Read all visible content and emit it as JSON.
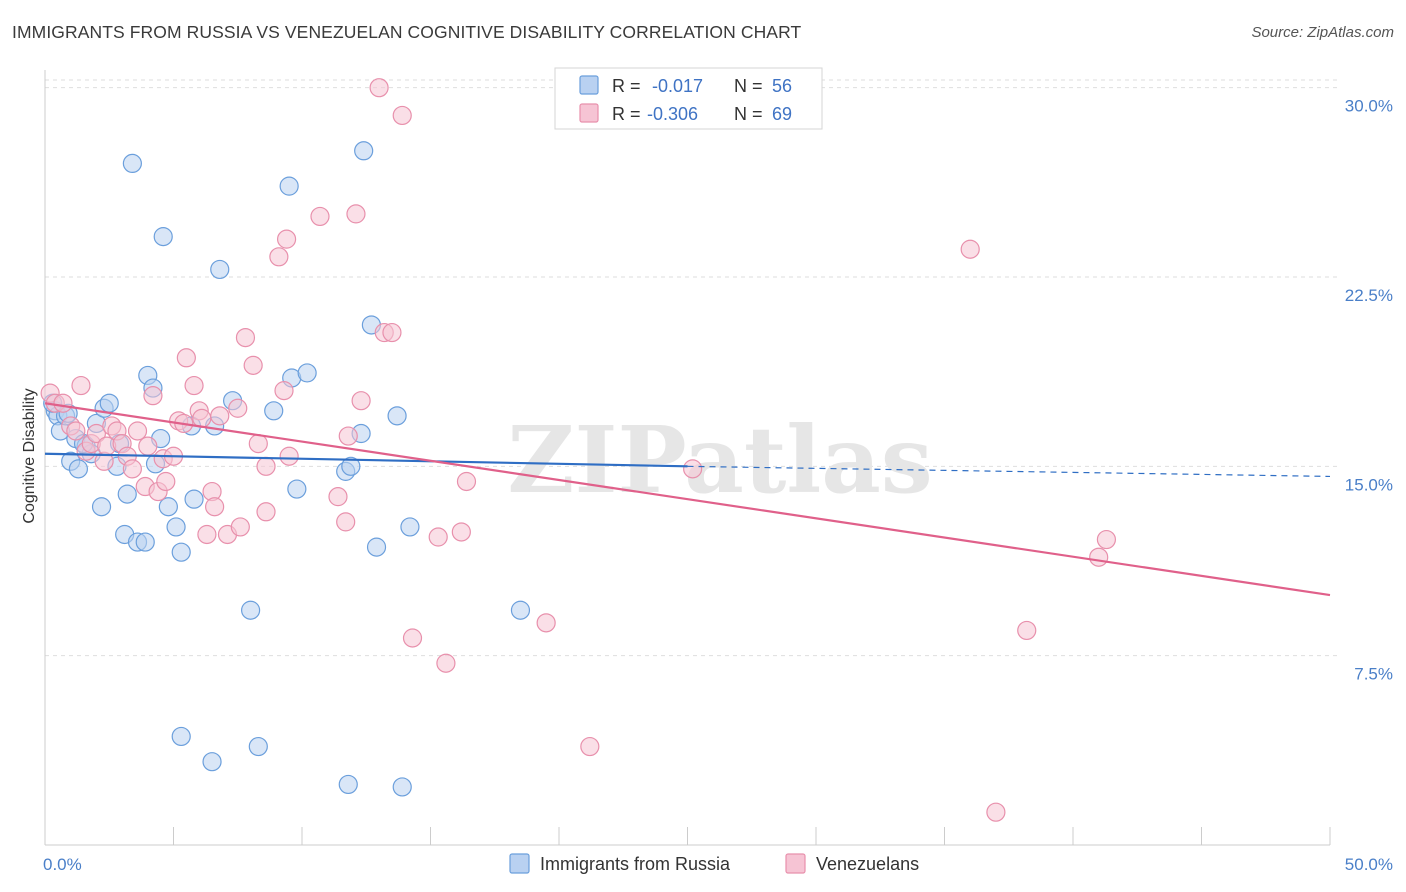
{
  "chart_data": {
    "type": "scatter",
    "title": "IMMIGRANTS FROM RUSSIA VS VENEZUELAN COGNITIVE DISABILITY CORRELATION CHART",
    "source": "Source: ZipAtlas.com",
    "xlabel": "",
    "ylabel": "Cognitive Disability",
    "xlim": [
      0,
      50
    ],
    "ylim": [
      0,
      30.7
    ],
    "y_ticks": [
      {
        "value": 7.5,
        "label": "7.5%"
      },
      {
        "value": 15.0,
        "label": "15.0%"
      },
      {
        "value": 22.5,
        "label": "22.5%"
      },
      {
        "value": 30.0,
        "label": "30.0%"
      }
    ],
    "x_tick_labels": {
      "left": "0.0%",
      "right": "50.0%"
    },
    "grid": true,
    "legend": {
      "placement": "top-center",
      "rows": [
        {
          "r_label": "R =",
          "r_value": "-0.017",
          "n_label": "N =",
          "n_value": "56"
        },
        {
          "r_label": "R =",
          "r_value": "-0.306",
          "n_label": "N =",
          "n_value": "69"
        }
      ]
    },
    "bottom_legend_placement": "bottom-center",
    "watermark": "ZIPatlas",
    "series": [
      {
        "name": "Immigrants from Russia",
        "color": "#6b9fdc",
        "fill": "#b9d1f1",
        "trend": {
          "x0": 0,
          "y0": 15.5,
          "x1": 25,
          "y1": 15.0,
          "dash_x1": 50,
          "dash_y1": 14.6,
          "color": "#2f6ec4"
        },
        "points": [
          [
            0.4,
            17.2
          ],
          [
            0.5,
            17.0
          ],
          [
            0.6,
            16.4
          ],
          [
            0.8,
            17.0
          ],
          [
            1.0,
            15.2
          ],
          [
            1.2,
            16.1
          ],
          [
            1.3,
            14.9
          ],
          [
            1.6,
            15.8
          ],
          [
            1.8,
            15.5
          ],
          [
            2.0,
            16.7
          ],
          [
            2.2,
            13.4
          ],
          [
            2.3,
            17.3
          ],
          [
            2.5,
            17.5
          ],
          [
            2.8,
            15.0
          ],
          [
            2.9,
            15.9
          ],
          [
            3.1,
            12.3
          ],
          [
            3.2,
            13.9
          ],
          [
            3.4,
            27.0
          ],
          [
            3.6,
            12.0
          ],
          [
            3.9,
            12.0
          ],
          [
            4.0,
            18.6
          ],
          [
            4.2,
            18.1
          ],
          [
            4.3,
            15.1
          ],
          [
            4.5,
            16.1
          ],
          [
            4.6,
            24.1
          ],
          [
            4.8,
            13.4
          ],
          [
            5.1,
            12.6
          ],
          [
            5.3,
            11.6
          ],
          [
            5.3,
            4.3
          ],
          [
            5.7,
            16.6
          ],
          [
            5.8,
            13.7
          ],
          [
            6.5,
            3.3
          ],
          [
            6.6,
            16.6
          ],
          [
            6.8,
            22.8
          ],
          [
            7.3,
            17.6
          ],
          [
            8.0,
            9.3
          ],
          [
            8.3,
            3.9
          ],
          [
            8.9,
            17.2
          ],
          [
            9.5,
            26.1
          ],
          [
            9.6,
            18.5
          ],
          [
            9.8,
            14.1
          ],
          [
            10.2,
            18.7
          ],
          [
            11.7,
            14.8
          ],
          [
            11.8,
            2.4
          ],
          [
            11.9,
            15.0
          ],
          [
            12.3,
            16.3
          ],
          [
            12.4,
            27.5
          ],
          [
            12.7,
            20.6
          ],
          [
            12.9,
            11.8
          ],
          [
            13.7,
            17.0
          ],
          [
            13.9,
            2.3
          ],
          [
            14.2,
            12.6
          ],
          [
            18.5,
            9.3
          ],
          [
            0.3,
            17.5
          ],
          [
            0.9,
            17.1
          ],
          [
            1.5,
            15.9
          ]
        ]
      },
      {
        "name": "Venezuelans",
        "color": "#e890ac",
        "fill": "#f6c4d4",
        "trend": {
          "x0": 0,
          "y0": 17.5,
          "x1": 50,
          "y1": 9.9,
          "color": "#e0608a"
        },
        "points": [
          [
            0.2,
            17.9
          ],
          [
            0.4,
            17.5
          ],
          [
            0.7,
            17.5
          ],
          [
            1.0,
            16.6
          ],
          [
            1.2,
            16.4
          ],
          [
            1.4,
            18.2
          ],
          [
            1.6,
            15.6
          ],
          [
            1.8,
            15.9
          ],
          [
            2.0,
            16.3
          ],
          [
            2.3,
            15.2
          ],
          [
            2.4,
            15.8
          ],
          [
            2.6,
            16.6
          ],
          [
            2.8,
            16.4
          ],
          [
            3.0,
            15.9
          ],
          [
            3.2,
            15.4
          ],
          [
            3.4,
            14.9
          ],
          [
            3.6,
            16.4
          ],
          [
            3.9,
            14.2
          ],
          [
            4.0,
            15.8
          ],
          [
            4.2,
            17.8
          ],
          [
            4.4,
            14.0
          ],
          [
            4.6,
            15.3
          ],
          [
            4.7,
            14.4
          ],
          [
            5.0,
            15.4
          ],
          [
            5.2,
            16.8
          ],
          [
            5.4,
            16.7
          ],
          [
            5.5,
            19.3
          ],
          [
            5.8,
            18.2
          ],
          [
            6.0,
            17.2
          ],
          [
            6.1,
            16.9
          ],
          [
            6.3,
            12.3
          ],
          [
            6.5,
            14.0
          ],
          [
            6.6,
            13.4
          ],
          [
            6.8,
            17.0
          ],
          [
            7.1,
            12.3
          ],
          [
            7.5,
            17.3
          ],
          [
            7.6,
            12.6
          ],
          [
            7.8,
            20.1
          ],
          [
            8.1,
            19.0
          ],
          [
            8.3,
            15.9
          ],
          [
            8.6,
            15.0
          ],
          [
            8.6,
            13.2
          ],
          [
            9.1,
            23.3
          ],
          [
            9.3,
            18.0
          ],
          [
            9.4,
            24.0
          ],
          [
            9.5,
            15.4
          ],
          [
            10.7,
            24.9
          ],
          [
            11.4,
            13.8
          ],
          [
            11.7,
            12.8
          ],
          [
            11.8,
            16.2
          ],
          [
            12.1,
            25.0
          ],
          [
            12.3,
            17.6
          ],
          [
            13.0,
            30.0
          ],
          [
            13.2,
            20.3
          ],
          [
            13.5,
            20.3
          ],
          [
            13.9,
            28.9
          ],
          [
            14.3,
            8.2
          ],
          [
            15.3,
            12.2
          ],
          [
            15.6,
            7.2
          ],
          [
            16.2,
            12.4
          ],
          [
            16.4,
            14.4
          ],
          [
            19.5,
            8.8
          ],
          [
            21.2,
            3.9
          ],
          [
            25.2,
            14.9
          ],
          [
            36.0,
            23.6
          ],
          [
            37.0,
            1.3
          ],
          [
            38.2,
            8.5
          ],
          [
            41.0,
            11.4
          ],
          [
            41.3,
            12.1
          ]
        ]
      }
    ]
  }
}
